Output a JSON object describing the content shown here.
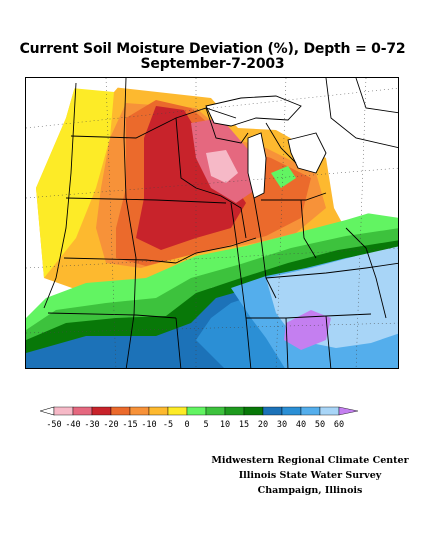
{
  "title": {
    "line1": "Current Soil Moisture Deviation (%), Depth = 0-72",
    "line2": "September-7-2003"
  },
  "legend": {
    "labels": [
      "-50",
      "-40",
      "-30",
      "-20",
      "-15",
      "-10",
      "-5",
      "0",
      "5",
      "10",
      "15",
      "20",
      "30",
      "40",
      "50",
      "60"
    ],
    "colors": [
      "#f6b9c7",
      "#e5687f",
      "#c8232b",
      "#eb6a2c",
      "#f79239",
      "#fdb92f",
      "#fdeb27",
      "#62f462",
      "#3dc23d",
      "#1e9a1e",
      "#087808",
      "#1c72b8",
      "#2b8fd5",
      "#54aeec",
      "#a8d5f7",
      "#c47ff0"
    ]
  },
  "credits": {
    "line1": "Midwestern Regional Climate Center",
    "line2": "Illinois State Water Survey",
    "line3": "Champaign, Illinois"
  }
}
